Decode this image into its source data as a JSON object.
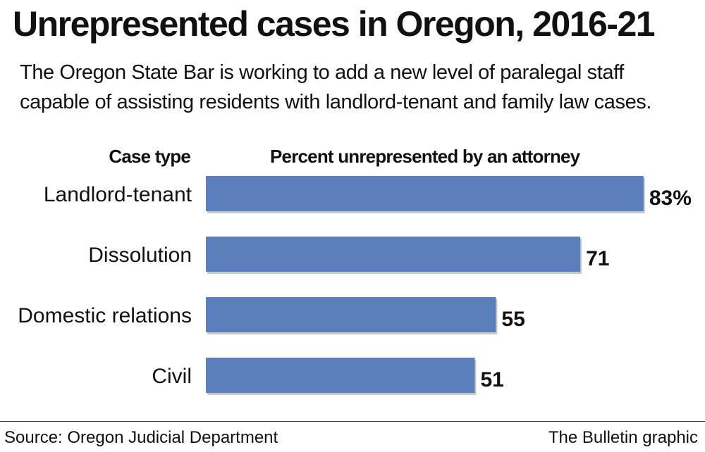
{
  "header": {
    "title": "Unrepresented cases in Oregon, 2016-21",
    "subtitle": "The Oregon State Bar is working to add a new level of paralegal staff capable of assisting residents with landlord-tenant and family law cases."
  },
  "columns": {
    "category_heading": "Case type",
    "value_heading": "Percent unrepresented by an attorney"
  },
  "chart_data": {
    "type": "bar",
    "orientation": "horizontal",
    "categories": [
      "Landlord-tenant",
      "Dissolution",
      "Domestic relations",
      "Civil"
    ],
    "values": [
      83,
      71,
      55,
      51
    ],
    "value_labels": [
      "83%",
      "71",
      "55",
      "51"
    ],
    "xlim": [
      0,
      100
    ],
    "grid": false,
    "bar_color": "#5b7fba",
    "shadow_color": "#c9c9c9"
  },
  "footer": {
    "source": "Source: Oregon Judicial Department",
    "credit": "The Bulletin graphic"
  }
}
